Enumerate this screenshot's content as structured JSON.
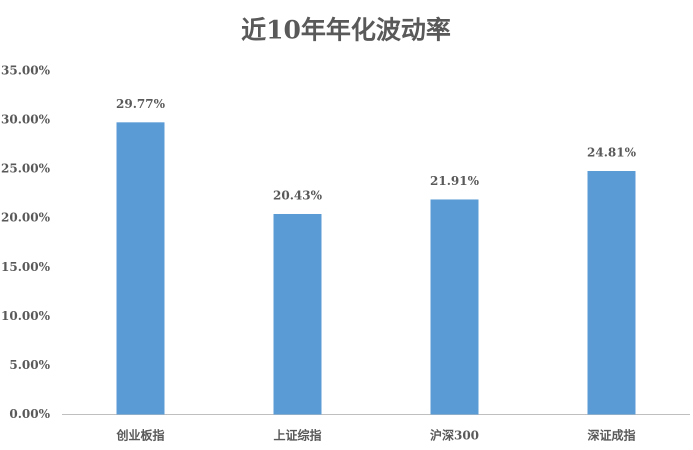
{
  "chart_data": {
    "type": "bar",
    "title": "近10年年化波动率",
    "categories": [
      "创业板指",
      "上证综指",
      "沪深300",
      "深证成指"
    ],
    "values": [
      29.77,
      20.43,
      21.91,
      24.81
    ],
    "value_labels": [
      "29.77%",
      "20.43%",
      "21.91%",
      "24.81%"
    ],
    "color": "#5b9bd5",
    "ylim": [
      0,
      35
    ],
    "yticks": [
      {
        "value": 0,
        "label": "0.00%"
      },
      {
        "value": 5,
        "label": "5.00%"
      },
      {
        "value": 10,
        "label": "10.00%"
      },
      {
        "value": 15,
        "label": "15.00%"
      },
      {
        "value": 20,
        "label": "20.00%"
      },
      {
        "value": 25,
        "label": "25.00%"
      },
      {
        "value": 30,
        "label": "30.00%"
      },
      {
        "value": 35,
        "label": "35.00%"
      }
    ],
    "grid": false
  }
}
